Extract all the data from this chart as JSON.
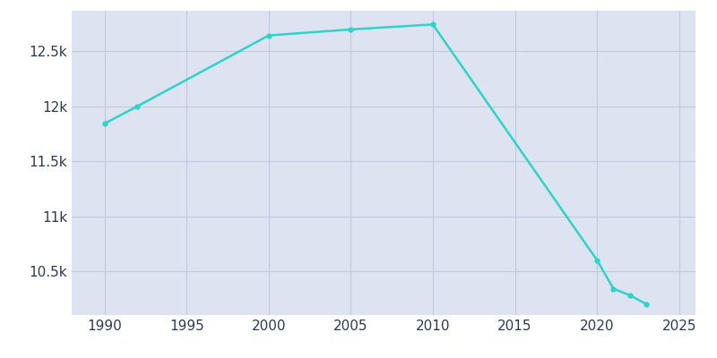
{
  "years": [
    1990,
    1992,
    2000,
    2005,
    2010,
    2020,
    2021,
    2022,
    2023
  ],
  "population": [
    11843,
    12000,
    12645,
    12700,
    12745,
    10600,
    10340,
    10280,
    10200
  ],
  "line_color": "#2dd4c8",
  "bg_color": "#dde3f0",
  "outer_bg": "#ffffff",
  "text_color": "#2a3a5e",
  "xlim": [
    1988,
    2026
  ],
  "ylim": [
    10100,
    12870
  ],
  "xticks": [
    1990,
    1995,
    2000,
    2005,
    2010,
    2015,
    2020,
    2025
  ],
  "ytick_values": [
    10500,
    11000,
    11500,
    12000,
    12500
  ],
  "ytick_labels": [
    "10.5k",
    "11k",
    "11.5k",
    "12k",
    "12.5k"
  ],
  "linewidth": 1.8,
  "marker": "o",
  "markersize": 3.5,
  "grid_color": "#c0cade",
  "figsize": [
    8.0,
    4.0
  ],
  "dpi": 100
}
